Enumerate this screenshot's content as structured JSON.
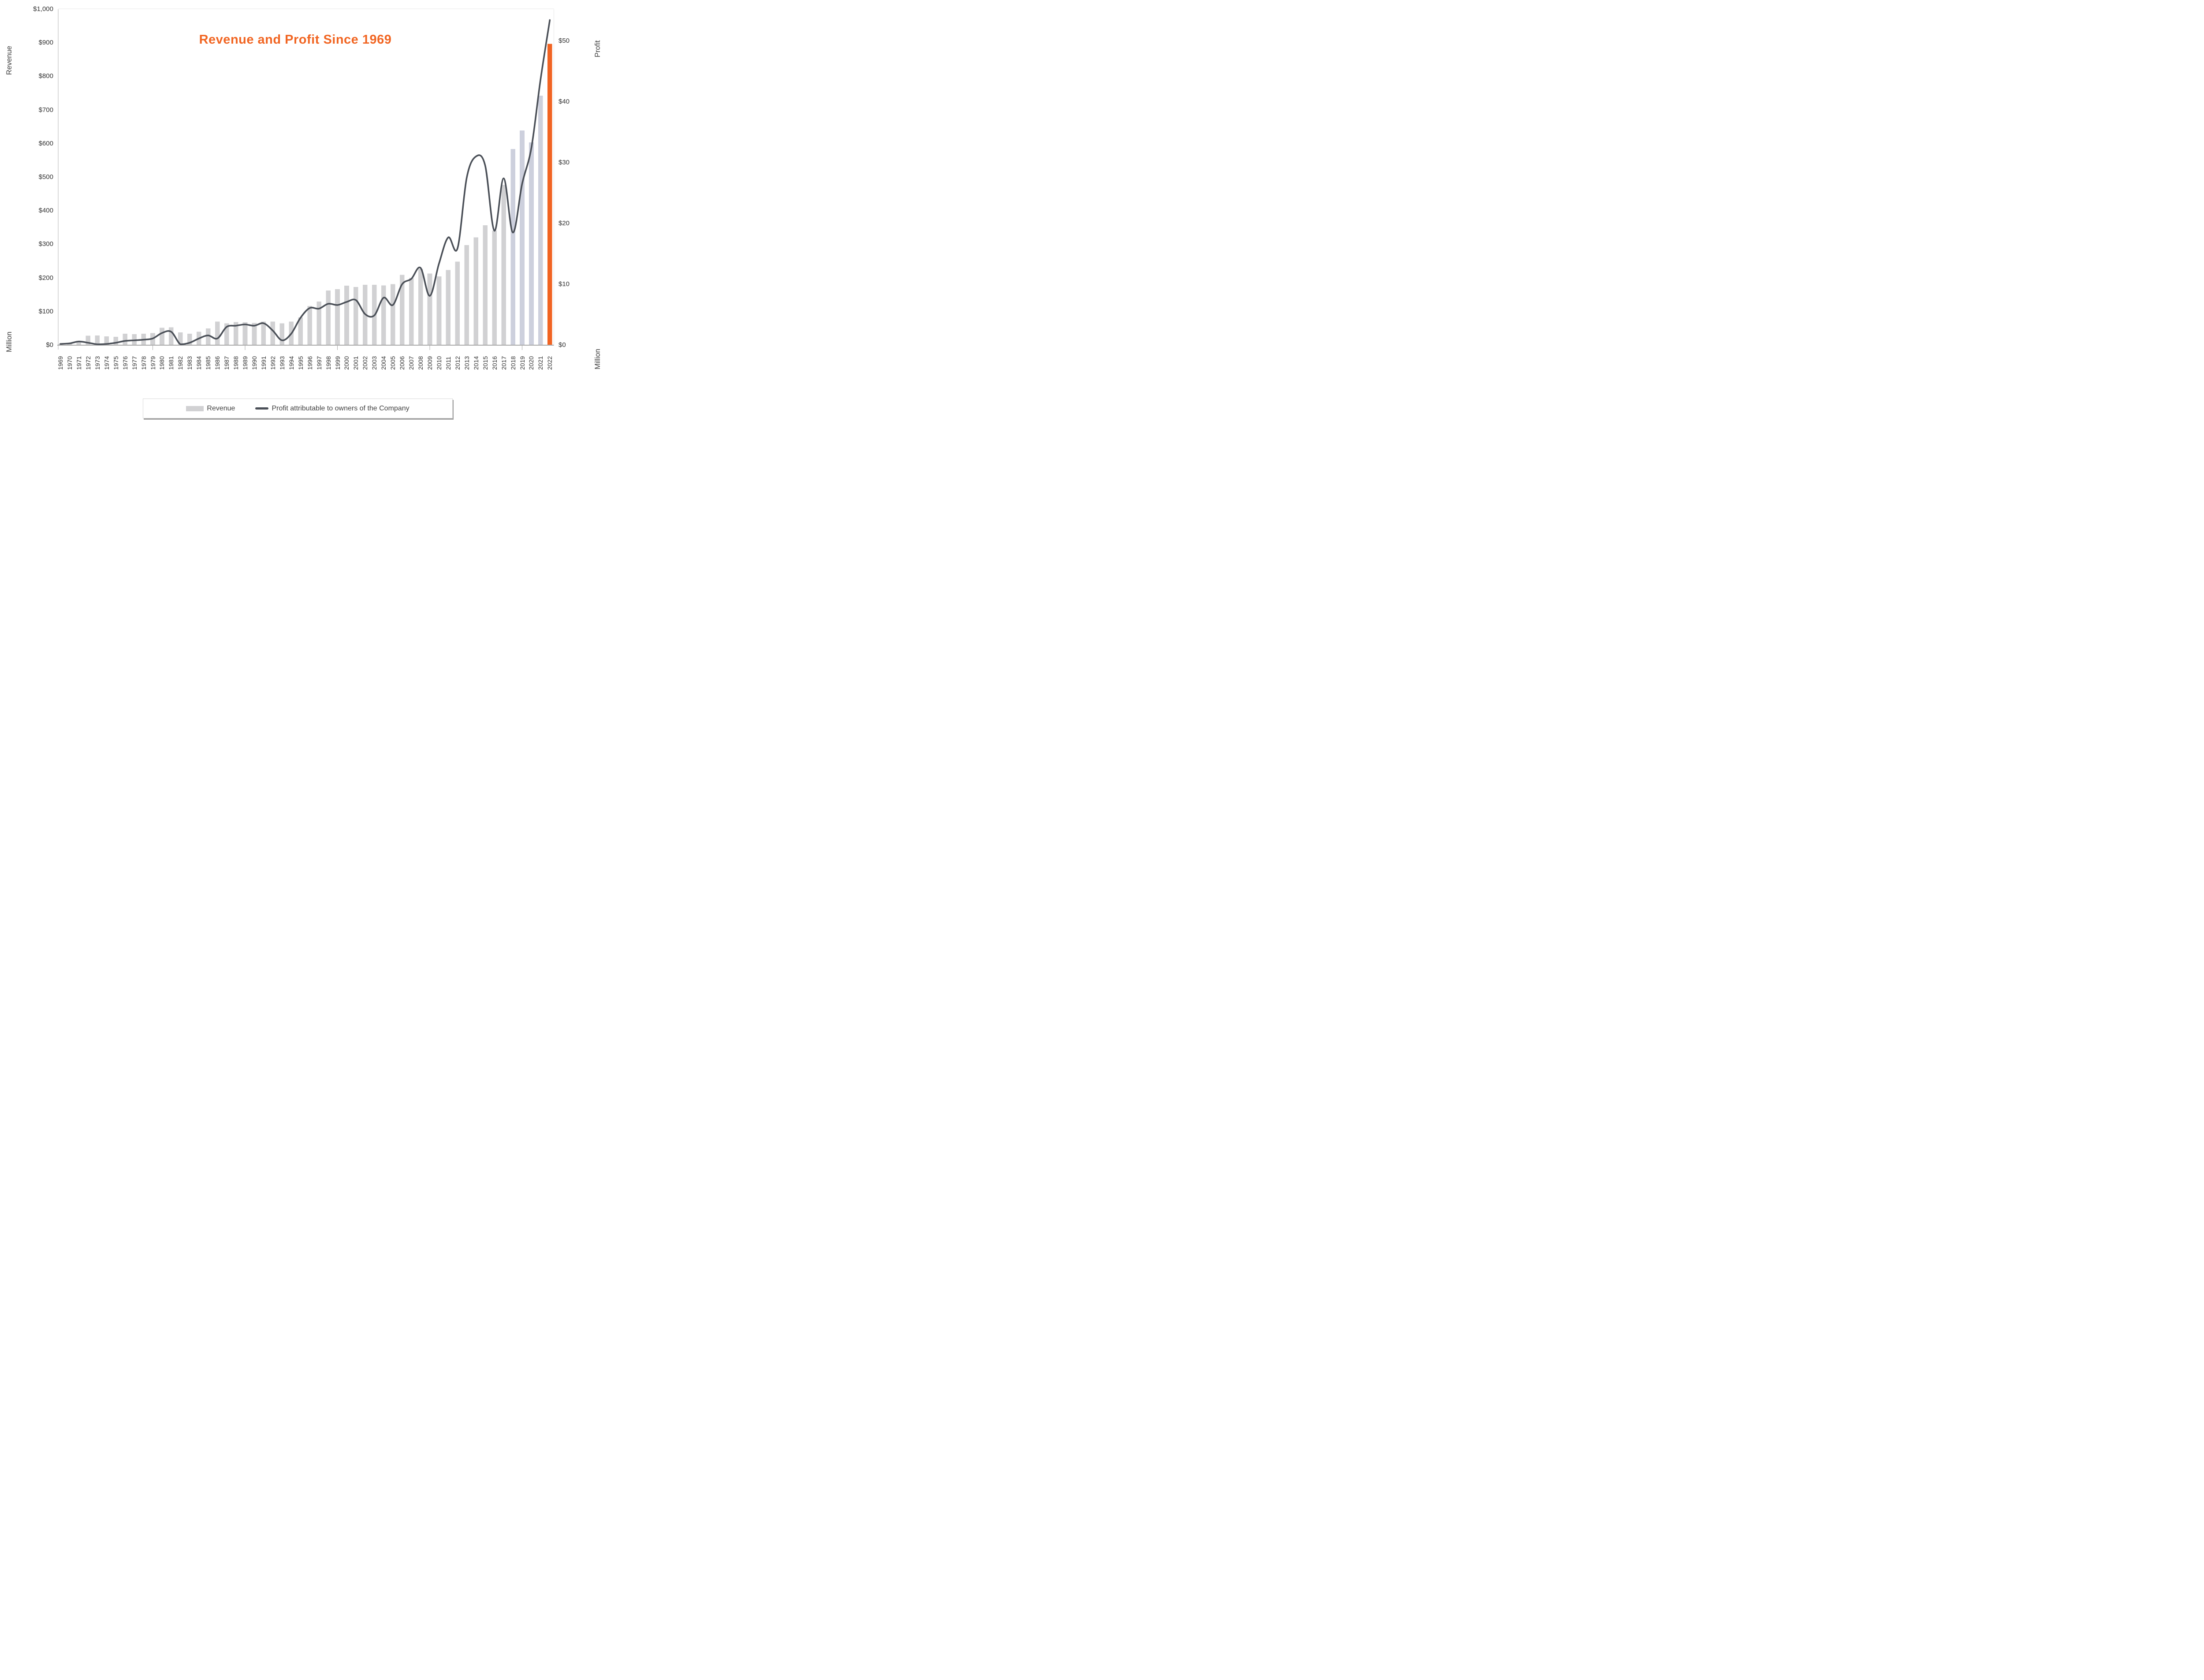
{
  "title": {
    "text": "Revenue and Profit Since 1969",
    "color": "#f16522"
  },
  "axes": {
    "left": {
      "title": "Revenue",
      "unit": "Million",
      "tick_labels": [
        "$1,000",
        "$900",
        "$800",
        "$700",
        "$600",
        "$500",
        "$400",
        "$300",
        "$200",
        "$100",
        "$0"
      ]
    },
    "right": {
      "title": "Profit",
      "unit": "Million",
      "tick_labels": [
        "$50",
        "$40",
        "$30",
        "$20",
        "$10",
        "$0"
      ]
    },
    "x": {
      "decade_tick_years": [
        1979,
        1989,
        1999,
        2009,
        2019
      ]
    }
  },
  "legend": {
    "items": [
      {
        "label": "Revenue",
        "swatch": "bar-swatch"
      },
      {
        "label": "Profit attributable to owners of the Company",
        "swatch": "line-swatch"
      }
    ]
  },
  "colors": {
    "bar_default": "#d1d1d3",
    "bar_highlight": "#cdd0dd",
    "bar_final": "#f16322",
    "line": "#4a4f57",
    "baseline": "#a6a6a6",
    "spine": "#e7e7e7",
    "left_spine": "#d9d9d9",
    "decade_tick": "#a9a9a9",
    "title": "#f16522"
  },
  "chart_data": {
    "type": "bar+line",
    "title": "Revenue and Profit Since 1969",
    "categories": [
      1969,
      1970,
      1971,
      1972,
      1973,
      1974,
      1975,
      1976,
      1977,
      1978,
      1979,
      1980,
      1981,
      1982,
      1983,
      1984,
      1985,
      1986,
      1987,
      1988,
      1989,
      1990,
      1991,
      1992,
      1993,
      1994,
      1995,
      1996,
      1997,
      1998,
      1999,
      2000,
      2001,
      2002,
      2003,
      2004,
      2005,
      2006,
      2007,
      2008,
      2009,
      2010,
      2011,
      2012,
      2013,
      2014,
      2015,
      2016,
      2017,
      2018,
      2019,
      2020,
      2021,
      2022
    ],
    "series": [
      {
        "name": "Revenue",
        "type": "bar",
        "axis": "left",
        "units": "$ Million",
        "values": [
          4,
          7,
          11,
          28,
          29,
          26,
          25,
          34,
          33,
          34,
          36,
          52,
          53,
          38,
          34,
          40,
          50,
          70,
          65,
          69,
          68,
          66,
          70,
          70,
          65,
          70,
          83,
          117,
          130,
          163,
          167,
          177,
          173,
          180,
          180,
          178,
          182,
          209,
          200,
          227,
          213,
          205,
          224,
          249,
          298,
          321,
          357,
          341,
          477,
          584,
          639,
          604,
          743,
          897
        ],
        "highlight_years": [
          2018,
          2019,
          2020,
          2021
        ],
        "final_year": 2022
      },
      {
        "name": "Profit attributable to owners of the Company",
        "type": "line",
        "axis": "right",
        "units": "$ Million",
        "values": [
          0.2,
          0.3,
          0.6,
          0.4,
          0.1,
          0.2,
          0.4,
          0.7,
          0.8,
          0.9,
          1.1,
          2.0,
          2.2,
          0.1,
          0.4,
          1.1,
          1.6,
          1.1,
          3.0,
          3.2,
          3.4,
          3.2,
          3.6,
          2.4,
          0.8,
          1.9,
          4.5,
          6.1,
          6.0,
          6.8,
          6.6,
          7.1,
          7.4,
          5.1,
          4.9,
          7.8,
          6.6,
          10.0,
          10.9,
          12.7,
          8.1,
          13.4,
          17.7,
          15.9,
          27.5,
          31.0,
          29.5,
          18.8,
          27.4,
          18.5,
          26.5,
          32.4,
          43.7,
          53.4
        ]
      }
    ],
    "left_axis_range": [
      0,
      1000
    ],
    "right_axis_range": [
      0,
      50
    ],
    "grid": "off",
    "legend_position": "bottom"
  }
}
